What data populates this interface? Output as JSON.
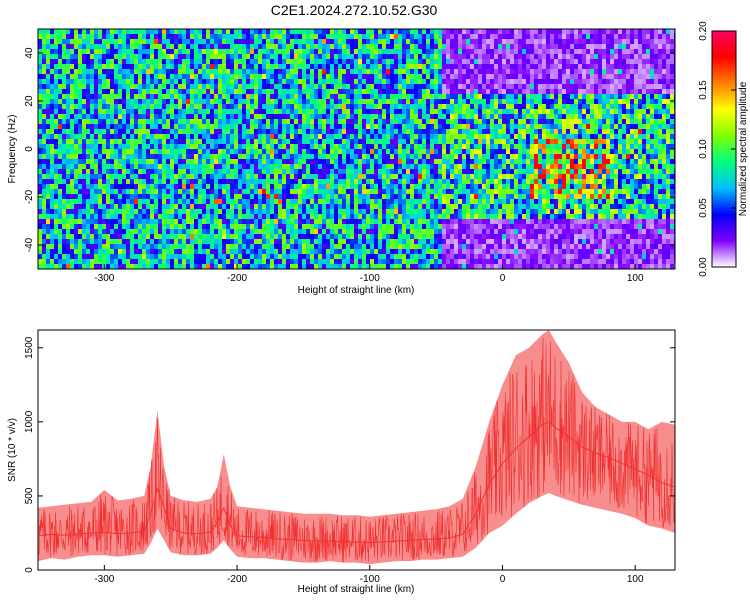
{
  "title": "C2E1.2024.272.10.52.G30",
  "chart_data": [
    {
      "type": "heatmap",
      "xlabel": "Height of straight line (km)",
      "ylabel": "Frequency (Hz)",
      "xlim": [
        -350,
        130
      ],
      "ylim": [
        -50,
        50
      ],
      "x_ticks": [
        -300,
        -200,
        -100,
        0,
        100
      ],
      "y_ticks": [
        -40,
        -20,
        0,
        20,
        40
      ],
      "colorbar": {
        "label": "Normalized spectral amplitude",
        "range": [
          0.0,
          0.2
        ],
        "ticks": [
          "0.00",
          "0.05",
          "0.10",
          "0.15",
          "0.20"
        ],
        "colormap": [
          "#ffffff",
          "#8000ff",
          "#0000ff",
          "#00c0ff",
          "#00ff80",
          "#80ff00",
          "#ffff00",
          "#ff8000",
          "#ff0000",
          "#ff0060"
        ]
      },
      "regions": [
        {
          "x": [
            -350,
            -45
          ],
          "freq": [
            -50,
            50
          ],
          "level": 0.08
        },
        {
          "x": [
            -45,
            130
          ],
          "freq": [
            -50,
            -30
          ],
          "level": 0.02
        },
        {
          "x": [
            -45,
            130
          ],
          "freq": [
            -30,
            22
          ],
          "level": 0.09
        },
        {
          "x": [
            -45,
            130
          ],
          "freq": [
            22,
            50
          ],
          "level": 0.02
        },
        {
          "x": [
            20,
            80
          ],
          "freq": [
            -20,
            5
          ],
          "level": 0.13
        }
      ]
    },
    {
      "type": "line",
      "xlabel": "Height of straight line (km)",
      "ylabel": "SNR (10 * v/v)",
      "xlim": [
        -350,
        130
      ],
      "ylim": [
        0,
        1620
      ],
      "x_ticks": [
        -300,
        -200,
        -100,
        0,
        100
      ],
      "y_ticks": [
        0,
        500,
        1000,
        1500
      ],
      "color": "#f03030",
      "series": [
        {
          "x": [
            -350,
            -340,
            -330,
            -320,
            -310,
            -300,
            -290,
            -280,
            -270,
            -265,
            -260,
            -255,
            -250,
            -240,
            -230,
            -220,
            -215,
            -210,
            -205,
            -200,
            -190,
            -180,
            -170,
            -160,
            -150,
            -140,
            -130,
            -120,
            -110,
            -100,
            -90,
            -80,
            -70,
            -60,
            -50,
            -40,
            -30,
            -20,
            -10,
            0,
            10,
            20,
            30,
            35,
            40,
            50,
            60,
            70,
            80,
            90,
            100,
            110,
            120,
            130
          ],
          "mean": [
            230,
            240,
            235,
            245,
            250,
            255,
            245,
            250,
            260,
            380,
            550,
            420,
            280,
            250,
            245,
            255,
            320,
            420,
            300,
            230,
            225,
            220,
            210,
            205,
            200,
            195,
            195,
            190,
            190,
            185,
            190,
            195,
            200,
            205,
            210,
            215,
            240,
            380,
            580,
            720,
            820,
            900,
            980,
            1000,
            960,
            900,
            830,
            790,
            760,
            720,
            680,
            640,
            590,
            560
          ],
          "upper": [
            420,
            430,
            440,
            450,
            460,
            540,
            470,
            480,
            500,
            700,
            1080,
            700,
            500,
            470,
            460,
            480,
            560,
            780,
            560,
            430,
            420,
            410,
            400,
            390,
            380,
            380,
            380,
            370,
            370,
            360,
            370,
            380,
            390,
            400,
            410,
            430,
            480,
            700,
            1000,
            1250,
            1450,
            1500,
            1590,
            1620,
            1540,
            1400,
            1200,
            1100,
            1050,
            1000,
            1000,
            950,
            1000,
            980
          ],
          "lower": [
            60,
            80,
            70,
            90,
            100,
            100,
            90,
            100,
            110,
            180,
            280,
            200,
            120,
            100,
            100,
            110,
            150,
            200,
            140,
            90,
            80,
            80,
            70,
            60,
            50,
            50,
            60,
            50,
            50,
            40,
            50,
            60,
            60,
            70,
            70,
            80,
            90,
            150,
            250,
            300,
            380,
            450,
            500,
            520,
            500,
            470,
            440,
            420,
            400,
            380,
            350,
            300,
            280,
            250
          ]
        }
      ]
    }
  ]
}
